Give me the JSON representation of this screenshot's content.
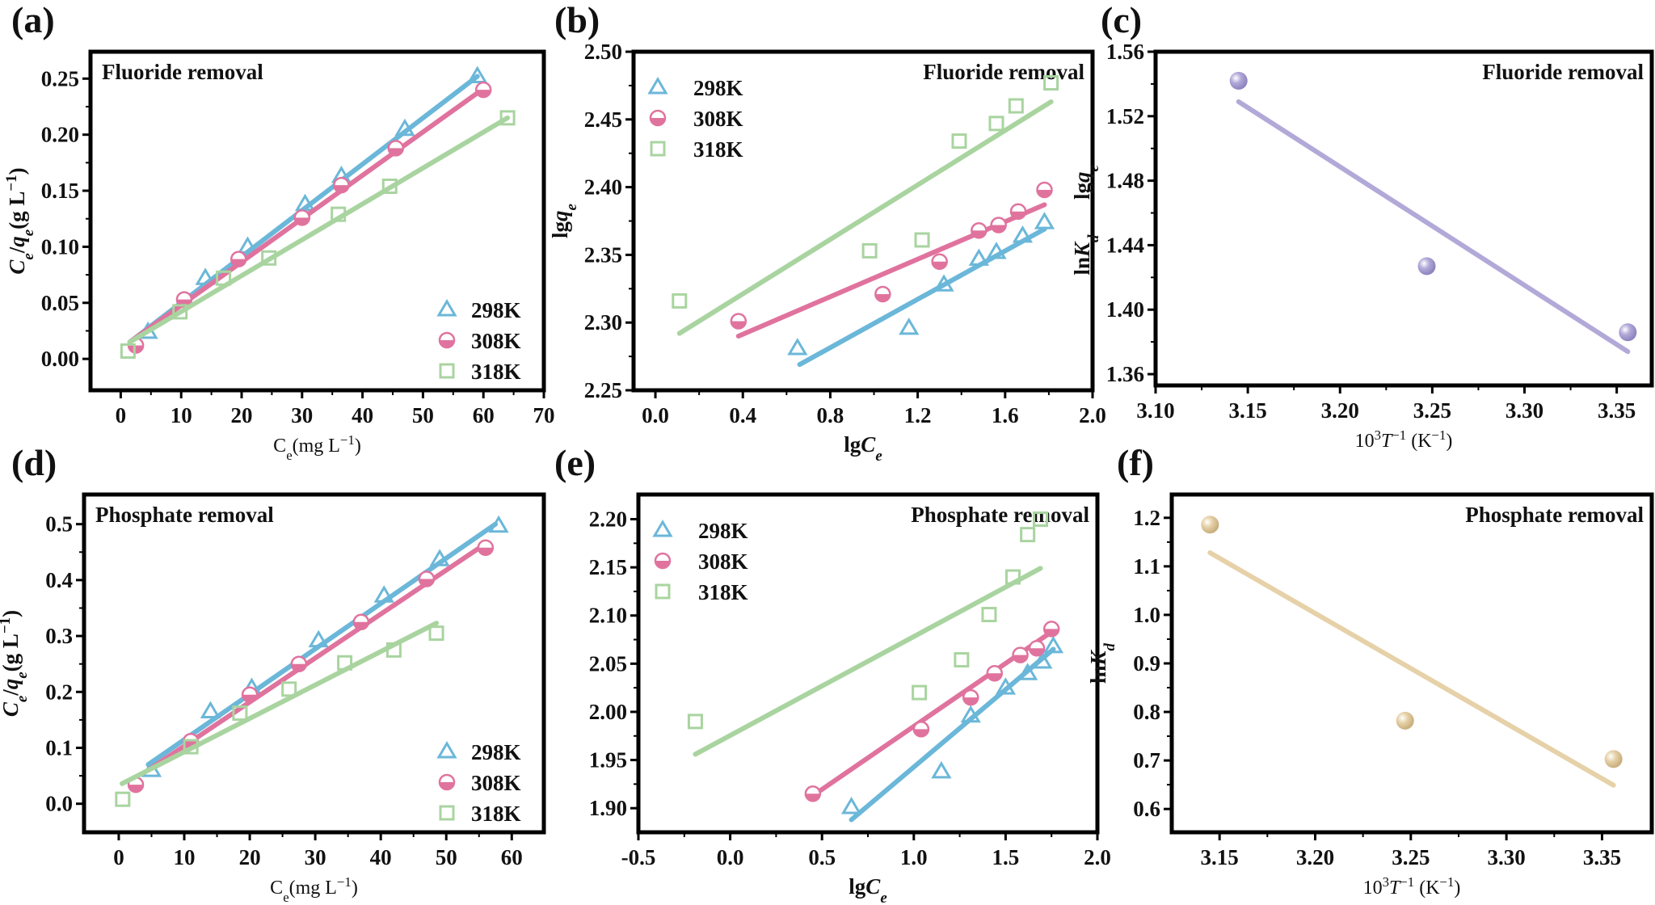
{
  "colors": {
    "298K": "#6bb7d9",
    "308K": "#e0739e",
    "318K": "#a9d4a0",
    "c_series": "#b2a9d8",
    "f_series": "#e6d1a8"
  },
  "chart_data": [
    {
      "panel": "(a)",
      "type": "scatter",
      "annotation": "Fluoride removal",
      "xlabel": [
        {
          "t": "C"
        },
        {
          "t": "e",
          "sub": true
        },
        {
          "t": "(mg L"
        },
        {
          "t": "−1",
          "sup": true
        },
        {
          "t": ")"
        }
      ],
      "ylabel": [
        {
          "t": "C",
          "i": true
        },
        {
          "t": "e",
          "i": true,
          "sub": true
        },
        {
          "t": "/"
        },
        {
          "t": "q",
          "i": true
        },
        {
          "t": "e",
          "i": true,
          "sub": true
        },
        {
          "t": "(g L"
        },
        {
          "t": "−1",
          "sup": true
        },
        {
          "t": ")"
        }
      ],
      "xlabel_style": "plain",
      "xlim": [
        -5,
        70
      ],
      "ylim": [
        -0.028,
        0.274
      ],
      "xticks": [
        "0",
        "10",
        "20",
        "30",
        "40",
        "50",
        "60",
        "70"
      ],
      "yticks": [
        "0.00",
        "0.05",
        "0.10",
        "0.15",
        "0.20",
        "0.25"
      ],
      "legend": "bottom-right",
      "series": [
        {
          "name": "298K",
          "marker": "triangle",
          "x": [
            4.5,
            14,
            21,
            30.5,
            36.5,
            47,
            59
          ],
          "y": [
            0.024,
            0.072,
            0.1,
            0.138,
            0.163,
            0.205,
            0.252
          ],
          "fit": [
            [
              1.5,
              0.015
            ],
            [
              59,
              0.252
            ]
          ]
        },
        {
          "name": "308K",
          "marker": "half-circle",
          "x": [
            2.5,
            10.5,
            19.5,
            30,
            36.5,
            45.5,
            60
          ],
          "y": [
            0.012,
            0.053,
            0.089,
            0.126,
            0.155,
            0.188,
            0.24
          ],
          "fit": [
            [
              1.5,
              0.015
            ],
            [
              60,
              0.241
            ]
          ]
        },
        {
          "name": "318K",
          "marker": "square",
          "x": [
            1.2,
            9.8,
            17,
            24.5,
            36,
            44.5,
            64
          ],
          "y": [
            0.007,
            0.042,
            0.072,
            0.09,
            0.129,
            0.154,
            0.215
          ],
          "fit": [
            [
              1.5,
              0.015
            ],
            [
              64,
              0.215
            ]
          ]
        }
      ]
    },
    {
      "panel": "(b)",
      "type": "scatter",
      "annotation": "Fluoride removal",
      "xlabel": [
        {
          "t": "lg"
        },
        {
          "t": "C",
          "i": true
        },
        {
          "t": "e",
          "i": true,
          "sub": true
        }
      ],
      "ylabel": [
        {
          "t": "lg"
        },
        {
          "t": "q",
          "i": true
        },
        {
          "t": "e",
          "i": true,
          "sub": true
        }
      ],
      "xlabel_style": "bold",
      "xlim": [
        -0.1,
        2.0
      ],
      "ylim": [
        2.25,
        2.5
      ],
      "xticks": [
        "0.0",
        "0.4",
        "0.8",
        "1.2",
        "1.6",
        "2.0"
      ],
      "yticks": [
        "2.25",
        "2.30",
        "2.35",
        "2.40",
        "2.45",
        "2.50"
      ],
      "legend": "top-left",
      "series": [
        {
          "name": "298K",
          "marker": "triangle",
          "x": [
            0.65,
            1.16,
            1.32,
            1.48,
            1.56,
            1.68,
            1.78
          ],
          "y": [
            2.281,
            2.296,
            2.328,
            2.347,
            2.352,
            2.364,
            2.374
          ],
          "fit": [
            [
              0.66,
              2.269
            ],
            [
              1.78,
              2.369
            ]
          ]
        },
        {
          "name": "308K",
          "marker": "half-circle",
          "x": [
            0.38,
            1.04,
            1.3,
            1.48,
            1.57,
            1.66,
            1.78
          ],
          "y": [
            2.301,
            2.321,
            2.345,
            2.368,
            2.372,
            2.382,
            2.398
          ],
          "fit": [
            [
              0.38,
              2.29
            ],
            [
              1.78,
              2.387
            ]
          ]
        },
        {
          "name": "318K",
          "marker": "square",
          "x": [
            0.11,
            0.98,
            1.22,
            1.39,
            1.56,
            1.65,
            1.81
          ],
          "y": [
            2.316,
            2.353,
            2.361,
            2.434,
            2.447,
            2.46,
            2.477
          ],
          "fit": [
            [
              0.11,
              2.292
            ],
            [
              1.81,
              2.463
            ]
          ]
        }
      ]
    },
    {
      "panel": "(c)",
      "type": "scatter",
      "annotation": "Fluoride removal",
      "xlabel": [
        {
          "t": "10"
        },
        {
          "t": "3",
          "sup": true
        },
        {
          "t": "T",
          "i": true
        },
        {
          "t": "−1",
          "sup": true
        },
        {
          "t": " (K"
        },
        {
          "t": "−1",
          "sup": true
        },
        {
          "t": ")"
        }
      ],
      "ylabel": [
        {
          "t": "ln"
        },
        {
          "t": "K",
          "i": true
        },
        {
          "t": "d",
          "i": true,
          "sub": true
        }
      ],
      "ylabel_overlay": [
        {
          "t": "lg"
        },
        {
          "t": "q",
          "i": true
        },
        {
          "t": "e",
          "i": true,
          "sub": true
        }
      ],
      "xlabel_style": "plain",
      "xlim": [
        3.1,
        3.369
      ],
      "ylim": [
        1.353,
        1.56
      ],
      "xticks": [
        "3.10",
        "3.15",
        "3.20",
        "3.25",
        "3.30",
        "3.35"
      ],
      "yticks": [
        "1.36",
        "1.40",
        "1.44",
        "1.48",
        "1.52",
        "1.56"
      ],
      "series": [
        {
          "marker": "sphere",
          "color_key": "c_series",
          "x": [
            3.145,
            3.247,
            3.356
          ],
          "y": [
            1.542,
            1.427,
            1.386
          ],
          "fit": [
            [
              3.145,
              1.529
            ],
            [
              3.356,
              1.374
            ]
          ]
        }
      ]
    },
    {
      "panel": "(d)",
      "type": "scatter",
      "annotation": "Phosphate removal",
      "xlabel": [
        {
          "t": "C"
        },
        {
          "t": "e",
          "sub": true
        },
        {
          "t": "(mg L"
        },
        {
          "t": "−1",
          "sup": true
        },
        {
          "t": ")"
        }
      ],
      "ylabel": [
        {
          "t": "C",
          "i": true
        },
        {
          "t": "e",
          "i": true,
          "sub": true
        },
        {
          "t": "/"
        },
        {
          "t": "q",
          "i": true
        },
        {
          "t": "e",
          "i": true,
          "sub": true
        },
        {
          "t": "(g L"
        },
        {
          "t": "−1",
          "sup": true
        },
        {
          "t": ")"
        }
      ],
      "xlabel_style": "plain",
      "xlim": [
        -5.3,
        64.9
      ],
      "ylim": [
        -0.051,
        0.553
      ],
      "xticks": [
        "0",
        "10",
        "20",
        "30",
        "40",
        "50",
        "60"
      ],
      "yticks": [
        "0.0",
        "0.1",
        "0.2",
        "0.3",
        "0.4",
        "0.5"
      ],
      "legend": "bottom-right",
      "series": [
        {
          "name": "298K",
          "marker": "triangle",
          "x": [
            5,
            14,
            20.3,
            30.5,
            40.5,
            49,
            58
          ],
          "y": [
            0.06,
            0.165,
            0.207,
            0.292,
            0.372,
            0.437,
            0.497
          ],
          "fit": [
            [
              4.5,
              0.07
            ],
            [
              57.5,
              0.5
            ]
          ]
        },
        {
          "name": "308K",
          "marker": "half-circle",
          "x": [
            2.6,
            11,
            20,
            27.5,
            37,
            47,
            56
          ],
          "y": [
            0.034,
            0.112,
            0.195,
            0.25,
            0.325,
            0.402,
            0.458
          ],
          "fit": [
            [
              4.5,
              0.06
            ],
            [
              56,
              0.465
            ]
          ]
        },
        {
          "name": "318K",
          "marker": "square",
          "x": [
            0.6,
            11,
            18.5,
            26,
            34.5,
            42,
            48.5
          ],
          "y": [
            0.008,
            0.102,
            0.162,
            0.205,
            0.252,
            0.275,
            0.305
          ],
          "fit": [
            [
              0.5,
              0.036
            ],
            [
              48.5,
              0.323
            ]
          ]
        }
      ]
    },
    {
      "panel": "(e)",
      "type": "scatter",
      "annotation": "Phosphate removal",
      "xlabel": [
        {
          "t": "lg"
        },
        {
          "t": "C",
          "i": true
        },
        {
          "t": "e",
          "i": true,
          "sub": true
        }
      ],
      "ylabel": [],
      "xlabel_style": "bold",
      "xlim": [
        -0.5,
        2.0
      ],
      "ylim": [
        1.875,
        2.2256
      ],
      "xticks": [
        "-0.5",
        "0.0",
        "0.5",
        "1.0",
        "1.5",
        "2.0"
      ],
      "yticks": [
        "1.90",
        "1.95",
        "2.00",
        "2.05",
        "2.10",
        "2.15",
        "2.20"
      ],
      "legend": "top-left",
      "series": [
        {
          "name": "298K",
          "marker": "triangle",
          "x": [
            0.66,
            1.15,
            1.31,
            1.5,
            1.62,
            1.7,
            1.76
          ],
          "y": [
            1.901,
            1.938,
            1.996,
            2.025,
            2.04,
            2.052,
            2.068
          ],
          "fit": [
            [
              0.66,
              1.888
            ],
            [
              1.76,
              2.065
            ]
          ]
        },
        {
          "name": "308K",
          "marker": "half-circle",
          "x": [
            0.45,
            1.04,
            1.31,
            1.44,
            1.58,
            1.67,
            1.75
          ],
          "y": [
            1.915,
            1.982,
            2.015,
            2.04,
            2.059,
            2.066,
            2.086
          ],
          "fit": [
            [
              0.45,
              1.913
            ],
            [
              1.75,
              2.083
            ]
          ]
        },
        {
          "name": "318K",
          "marker": "square",
          "x": [
            -0.19,
            1.03,
            1.26,
            1.41,
            1.54,
            1.62,
            1.69
          ],
          "y": [
            1.99,
            2.02,
            2.054,
            2.101,
            2.14,
            2.184,
            2.2
          ],
          "fit": [
            [
              -0.19,
              1.956
            ],
            [
              1.69,
              2.149
            ]
          ]
        }
      ]
    },
    {
      "panel": "(f)",
      "type": "scatter",
      "annotation": "Phosphate removal",
      "xlabel": [
        {
          "t": "10"
        },
        {
          "t": "3",
          "sup": true
        },
        {
          "t": "T",
          "i": true
        },
        {
          "t": "−1",
          "sup": true
        },
        {
          "t": " (K"
        },
        {
          "t": "−1",
          "sup": true
        },
        {
          "t": ")"
        }
      ],
      "ylabel": [
        {
          "t": "ln"
        },
        {
          "t": "K",
          "i": true
        },
        {
          "t": "d",
          "i": true,
          "sub": true
        }
      ],
      "xlabel_style": "plain",
      "xlim": [
        3.125,
        3.376
      ],
      "ylim": [
        0.552,
        1.248
      ],
      "xticks": [
        "3.15",
        "3.20",
        "3.25",
        "3.30",
        "3.35"
      ],
      "yticks": [
        "0.6",
        "0.7",
        "0.8",
        "0.9",
        "1.0",
        "1.1",
        "1.2"
      ],
      "series": [
        {
          "marker": "sphere",
          "color_key": "f_series",
          "x": [
            3.145,
            3.247,
            3.356
          ],
          "y": [
            1.186,
            0.782,
            0.703
          ],
          "fit": [
            [
              3.145,
              1.128
            ],
            [
              3.356,
              0.649
            ]
          ]
        }
      ]
    }
  ]
}
